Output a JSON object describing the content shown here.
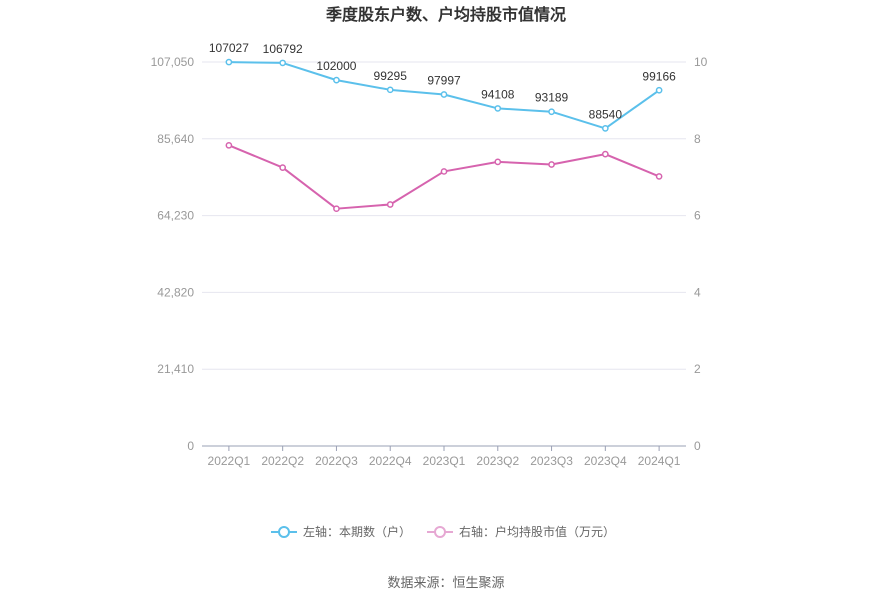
{
  "chart_data": {
    "type": "line",
    "title": "季度股东户数、户均持股市值情况",
    "categories": [
      "2022Q1",
      "2022Q2",
      "2022Q3",
      "2022Q4",
      "2023Q1",
      "2023Q2",
      "2023Q3",
      "2023Q4",
      "2024Q1"
    ],
    "left_axis": {
      "ticks": [
        "0",
        "21,410",
        "42,820",
        "64,230",
        "85,640",
        "107,050"
      ],
      "ylim": [
        0,
        107050
      ]
    },
    "right_axis": {
      "ticks": [
        "0",
        "2",
        "4",
        "6",
        "8",
        "10"
      ],
      "ylim": [
        0,
        10
      ]
    },
    "series": [
      {
        "name": "左轴：本期数（户）",
        "axis": "left",
        "color": "#5bc0eb",
        "values": [
          107027,
          106792,
          102000,
          99295,
          97997,
          94108,
          93189,
          88540,
          99166
        ],
        "labels": [
          "107027",
          "106792",
          "102000",
          "99295",
          "97997",
          "94108",
          "93189",
          "88540",
          "99166"
        ]
      },
      {
        "name": "右轴：户均持股市值（万元）",
        "axis": "right",
        "color": "#d663ae",
        "values": [
          7.83,
          7.25,
          6.18,
          6.29,
          7.15,
          7.4,
          7.33,
          7.6,
          7.02
        ]
      }
    ],
    "grid": true,
    "legend_position": "bottom"
  },
  "footer": {
    "source": "数据来源：恒生聚源"
  }
}
